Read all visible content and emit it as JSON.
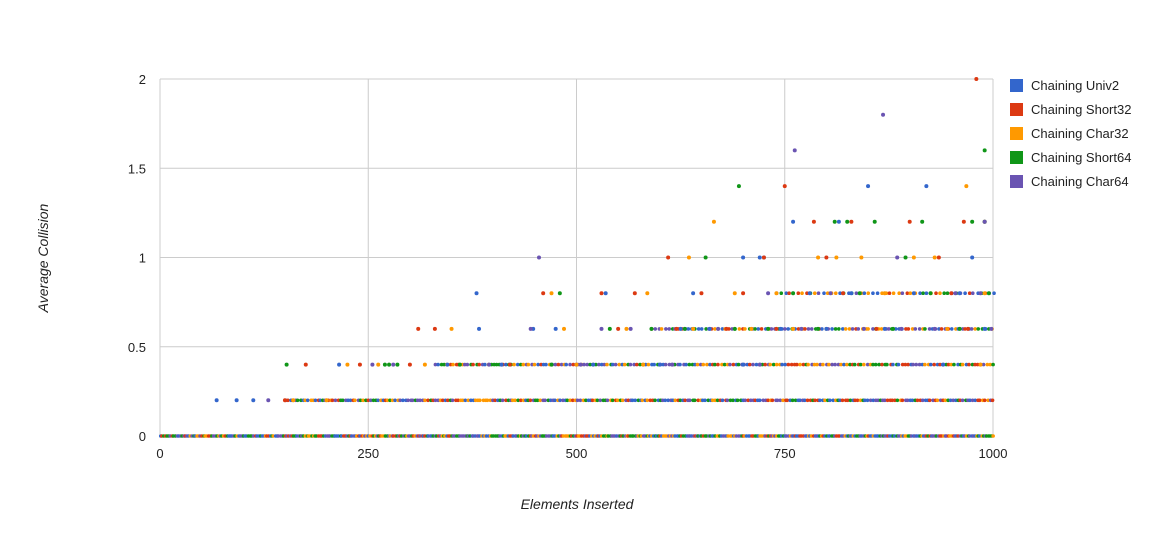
{
  "chart_data": {
    "type": "scatter",
    "title": "",
    "xlabel": "Elements Inserted",
    "ylabel": "Average Collision",
    "xlim": [
      0,
      1000
    ],
    "ylim": [
      0,
      2
    ],
    "x_ticks": [
      "0",
      "250",
      "500",
      "750",
      "1000"
    ],
    "y_ticks": [
      "0",
      "0.5",
      "1",
      "1.5",
      "2"
    ],
    "grid": true,
    "legend_position": "right",
    "series": [
      {
        "name": "Chaining Univ2",
        "color": "#3366cc",
        "points": [
          [
            68,
            0.2
          ],
          [
            92,
            0.2
          ],
          [
            112,
            0.2
          ],
          [
            215,
            0.4
          ],
          [
            380,
            0.8
          ],
          [
            383,
            0.6
          ],
          [
            448,
            0.6
          ],
          [
            475,
            0.6
          ],
          [
            535,
            0.8
          ],
          [
            625,
            0.6
          ],
          [
            640,
            0.8
          ],
          [
            700,
            1
          ],
          [
            720,
            1
          ],
          [
            725,
            1
          ],
          [
            760,
            1.2
          ],
          [
            780,
            0.8
          ],
          [
            815,
            1.2
          ],
          [
            850,
            1.4
          ],
          [
            920,
            1.4
          ],
          [
            960,
            0.8
          ],
          [
            990,
            0.6
          ],
          [
            345,
            0.4
          ],
          [
            410,
            0.4
          ],
          [
            520,
            0.4
          ],
          [
            600,
            0.4
          ],
          [
            660,
            0.6
          ],
          [
            700,
            0.4
          ],
          [
            745,
            0.6
          ],
          [
            800,
            0.6
          ],
          [
            830,
            0.8
          ],
          [
            870,
            0.6
          ],
          [
            905,
            0.8
          ],
          [
            940,
            0.4
          ],
          [
            975,
            1
          ]
        ]
      },
      {
        "name": "Chaining Short32",
        "color": "#dc3912",
        "points": [
          [
            150,
            0.2
          ],
          [
            175,
            0.4
          ],
          [
            240,
            0.4
          ],
          [
            310,
            0.6
          ],
          [
            330,
            0.6
          ],
          [
            460,
            0.8
          ],
          [
            530,
            0.8
          ],
          [
            570,
            0.8
          ],
          [
            610,
            1
          ],
          [
            650,
            0.8
          ],
          [
            700,
            0.8
          ],
          [
            725,
            1
          ],
          [
            750,
            1.4
          ],
          [
            785,
            1.2
          ],
          [
            800,
            1
          ],
          [
            830,
            1.2
          ],
          [
            900,
            1.2
          ],
          [
            935,
            1
          ],
          [
            965,
            1.2
          ],
          [
            980,
            2
          ],
          [
            990,
            1.2
          ],
          [
            300,
            0.4
          ],
          [
            420,
            0.4
          ],
          [
            550,
            0.6
          ],
          [
            620,
            0.6
          ],
          [
            680,
            0.6
          ],
          [
            740,
            0.6
          ],
          [
            820,
            0.8
          ],
          [
            860,
            0.6
          ],
          [
            950,
            0.8
          ],
          [
            970,
            0.6
          ]
        ]
      },
      {
        "name": "Chaining Char32",
        "color": "#ff9900",
        "points": [
          [
            160,
            0.2
          ],
          [
            200,
            0.2
          ],
          [
            225,
            0.4
          ],
          [
            262,
            0.4
          ],
          [
            318,
            0.4
          ],
          [
            350,
            0.6
          ],
          [
            470,
            0.8
          ],
          [
            485,
            0.6
          ],
          [
            560,
            0.6
          ],
          [
            585,
            0.8
          ],
          [
            635,
            1
          ],
          [
            665,
            1.2
          ],
          [
            690,
            0.8
          ],
          [
            740,
            0.8
          ],
          [
            790,
            1
          ],
          [
            812,
            1
          ],
          [
            842,
            1
          ],
          [
            905,
            1
          ],
          [
            930,
            1
          ],
          [
            968,
            1.4
          ],
          [
            990,
            0.8
          ],
          [
            500,
            0.4
          ],
          [
            580,
            0.4
          ],
          [
            640,
            0.6
          ],
          [
            710,
            0.6
          ],
          [
            760,
            0.6
          ],
          [
            870,
            0.8
          ],
          [
            945,
            0.6
          ],
          [
            985,
            0.4
          ]
        ]
      },
      {
        "name": "Chaining Short64",
        "color": "#109618",
        "points": [
          [
            152,
            0.4
          ],
          [
            270,
            0.4
          ],
          [
            285,
            0.4
          ],
          [
            480,
            0.8
          ],
          [
            540,
            0.6
          ],
          [
            655,
            1
          ],
          [
            695,
            1.4
          ],
          [
            760,
            0.8
          ],
          [
            810,
            1.2
          ],
          [
            825,
            1.2
          ],
          [
            858,
            1.2
          ],
          [
            895,
            1
          ],
          [
            915,
            1.2
          ],
          [
            975,
            1.2
          ],
          [
            990,
            1.6
          ],
          [
            990,
            1.2
          ],
          [
            275,
            0.4
          ],
          [
            360,
            0.4
          ],
          [
            470,
            0.4
          ],
          [
            590,
            0.6
          ],
          [
            630,
            0.6
          ],
          [
            690,
            0.6
          ],
          [
            730,
            0.6
          ],
          [
            790,
            0.6
          ],
          [
            840,
            0.8
          ],
          [
            880,
            0.6
          ],
          [
            925,
            0.8
          ],
          [
            960,
            0.6
          ],
          [
            995,
            0.8
          ]
        ]
      },
      {
        "name": "Chaining Char64",
        "color": "#6a54b2",
        "points": [
          [
            130,
            0.2
          ],
          [
            255,
            0.4
          ],
          [
            455,
            1
          ],
          [
            530,
            0.6
          ],
          [
            730,
            0.8
          ],
          [
            762,
            1.6
          ],
          [
            868,
            1.8
          ],
          [
            885,
            1
          ],
          [
            990,
            1.2
          ],
          [
            280,
            0.4
          ],
          [
            395,
            0.4
          ],
          [
            445,
            0.6
          ],
          [
            505,
            0.4
          ],
          [
            565,
            0.6
          ],
          [
            615,
            0.4
          ],
          [
            670,
            0.6
          ],
          [
            720,
            0.4
          ],
          [
            770,
            0.6
          ],
          [
            805,
            0.8
          ],
          [
            845,
            0.6
          ],
          [
            890,
            0.6
          ],
          [
            930,
            0.6
          ],
          [
            955,
            0.8
          ],
          [
            985,
            0.8
          ],
          [
            998,
            0.6
          ]
        ]
      }
    ]
  }
}
